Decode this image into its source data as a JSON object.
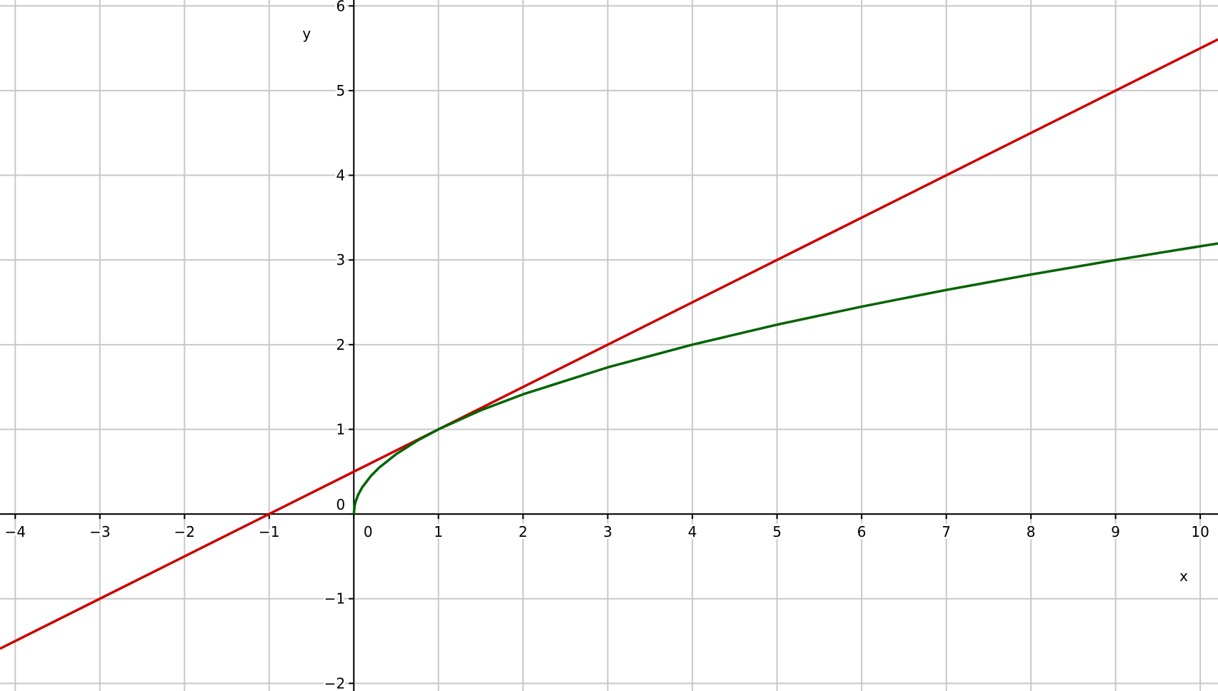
{
  "chart_data": {
    "type": "line",
    "xlabel": "x",
    "ylabel": "y",
    "xlim": [
      -4.18,
      10.21
    ],
    "ylim": [
      -2.09,
      6.07
    ],
    "xticks": [
      {
        "value": -4,
        "label": "−4"
      },
      {
        "value": -3,
        "label": "−3"
      },
      {
        "value": -2,
        "label": "−2"
      },
      {
        "value": -1,
        "label": "−1"
      },
      0,
      1,
      2,
      3,
      4,
      5,
      6,
      7,
      8,
      9,
      10
    ],
    "yticks": [
      {
        "value": -2,
        "label": "−2"
      },
      {
        "value": -1,
        "label": "−1"
      },
      0,
      1,
      2,
      3,
      4,
      5,
      6
    ],
    "grid": true,
    "series": [
      {
        "color": "#cc0000",
        "x": [
          -4.18,
          10.21
        ],
        "values": [
          -1.59,
          5.605
        ]
      },
      {
        "color": "#006400",
        "x": [
          0,
          0.01,
          0.02,
          0.05,
          0.1,
          0.2,
          0.3,
          0.5,
          0.75,
          1,
          1.5,
          2,
          3,
          4,
          5,
          6,
          7,
          8,
          9,
          10,
          10.21
        ],
        "values": [
          0,
          0.1,
          0.141,
          0.224,
          0.316,
          0.447,
          0.548,
          0.707,
          0.866,
          1,
          1.225,
          1.414,
          1.732,
          2,
          2.236,
          2.449,
          2.646,
          2.828,
          3,
          3.162,
          3.195
        ]
      }
    ]
  }
}
